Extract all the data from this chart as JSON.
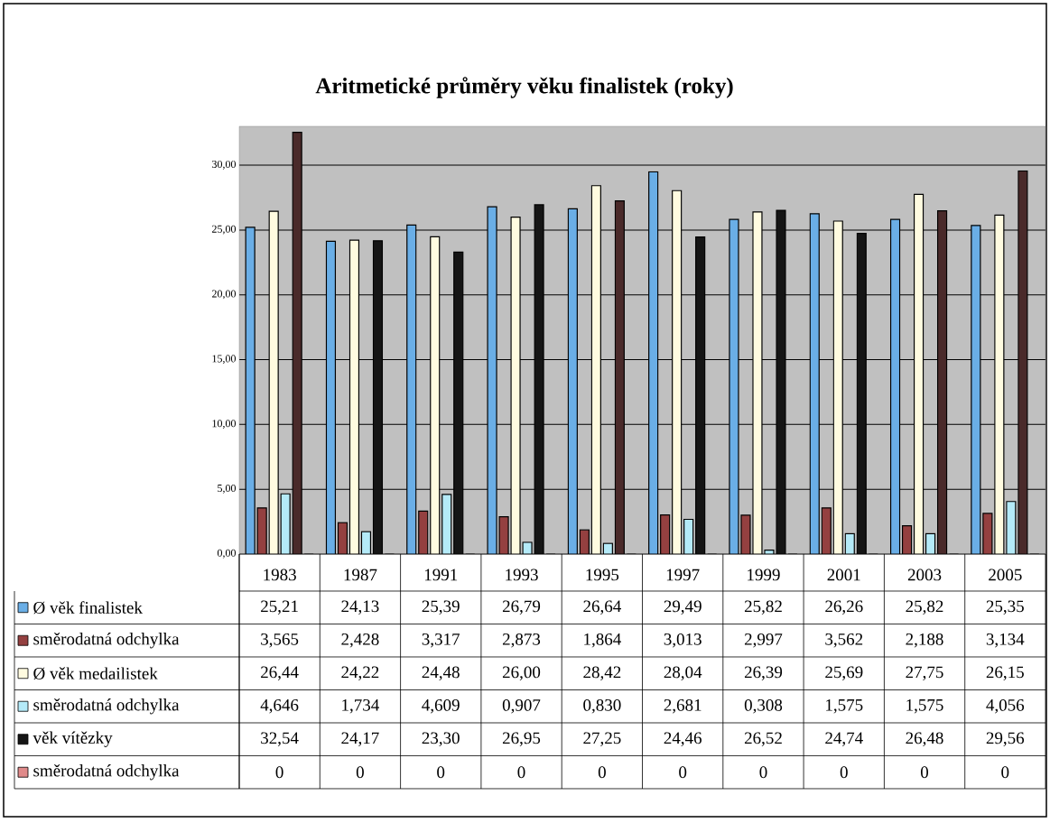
{
  "chart_data": {
    "type": "bar",
    "title": "Aritmetické průměry věku finalistek (roky)",
    "categories": [
      "1983",
      "1987",
      "1991",
      "1993",
      "1995",
      "1997",
      "1999",
      "2001",
      "2003",
      "2005"
    ],
    "series": [
      {
        "name": "Ø věk finalistek",
        "color": "#6aaee6",
        "values": [
          25.21,
          24.13,
          25.39,
          26.79,
          26.64,
          29.49,
          25.82,
          26.26,
          25.82,
          25.35
        ],
        "value_labels": [
          "25,21",
          "24,13",
          "25,39",
          "26,79",
          "26,64",
          "29,49",
          "25,82",
          "26,26",
          "25,82",
          "25,35"
        ]
      },
      {
        "name": "směrodatná odchylka",
        "color": "#944040",
        "values": [
          3.565,
          2.428,
          3.317,
          2.873,
          1.864,
          3.013,
          2.997,
          3.562,
          2.188,
          3.134
        ],
        "value_labels": [
          "3,565",
          "2,428",
          "3,317",
          "2,873",
          "1,864",
          "3,013",
          "2,997",
          "3,562",
          "2,188",
          "3,134"
        ]
      },
      {
        "name": "Ø věk medailistek",
        "color": "#fffbe0",
        "values": [
          26.44,
          24.22,
          24.48,
          26.0,
          28.42,
          28.04,
          26.39,
          25.69,
          27.75,
          26.15
        ],
        "value_labels": [
          "26,44",
          "24,22",
          "24,48",
          "26,00",
          "28,42",
          "28,04",
          "26,39",
          "25,69",
          "27,75",
          "26,15"
        ]
      },
      {
        "name": "směrodatná odchylka",
        "color": "#b4eaf8",
        "values": [
          4.646,
          1.734,
          4.609,
          0.907,
          0.83,
          2.681,
          0.308,
          1.575,
          1.575,
          4.056
        ],
        "value_labels": [
          "4,646",
          "1,734",
          "4,609",
          "0,907",
          "0,830",
          "2,681",
          "0,308",
          "1,575",
          "1,575",
          "4,056"
        ]
      },
      {
        "name": "věk vítězky",
        "color": "#151515",
        "colors": [
          "#4a2a2a",
          "#151515",
          "#151515",
          "#151515",
          "#4a2a2a",
          "#151515",
          "#151515",
          "#151515",
          "#4a2a2a",
          "#4a2a2a"
        ],
        "values": [
          32.54,
          24.17,
          23.3,
          26.95,
          27.25,
          24.46,
          26.52,
          24.74,
          26.48,
          29.56
        ],
        "value_labels": [
          "32,54",
          "24,17",
          "23,30",
          "26,95",
          "27,25",
          "24,46",
          "26,52",
          "24,74",
          "26,48",
          "29,56"
        ]
      },
      {
        "name": "směrodatná odchylka",
        "color": "#e08a8a",
        "values": [
          0,
          0,
          0,
          0,
          0,
          0,
          0,
          0,
          0,
          0
        ],
        "value_labels": [
          "0",
          "0",
          "0",
          "0",
          "0",
          "0",
          "0",
          "0",
          "0",
          "0"
        ]
      }
    ],
    "ylim": [
      0,
      33
    ],
    "yticks": [
      {
        "value": 0,
        "label": "0,00"
      },
      {
        "value": 5,
        "label": "5,00"
      },
      {
        "value": 10,
        "label": "10,00"
      },
      {
        "value": 15,
        "label": "15,00"
      },
      {
        "value": 20,
        "label": "20,00"
      },
      {
        "value": 25,
        "label": "25,00"
      },
      {
        "value": 30,
        "label": "30,00"
      }
    ],
    "grid": "y",
    "legend": "bottom"
  }
}
